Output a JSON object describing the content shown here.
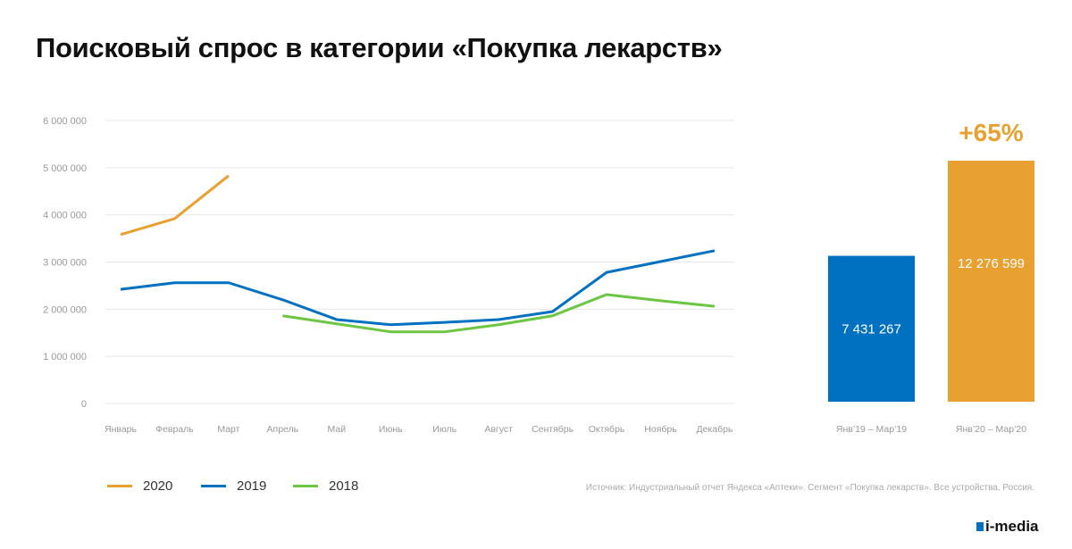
{
  "title": "Поисковый спрос в категории «Покупка лекарств»",
  "chart_data": [
    {
      "type": "line",
      "categories": [
        "Январь",
        "Февраль",
        "Март",
        "Апрель",
        "Май",
        "Июнь",
        "Июль",
        "Август",
        "Сентябрь",
        "Октябрь",
        "Ноябрь",
        "Декабрь"
      ],
      "ylim": [
        0,
        6000000
      ],
      "yticks": [
        0,
        1000000,
        2000000,
        3000000,
        4000000,
        5000000,
        6000000
      ],
      "ytick_labels": [
        "0",
        "1 000 000",
        "2 000 000",
        "3 000 000",
        "4 000 000",
        "5 000 000",
        "6 000 000"
      ],
      "grid": true,
      "legend_placement": "bottom-left",
      "series": [
        {
          "name": "2020",
          "color": "#e8a030",
          "values": [
            3580000,
            3920000,
            4830000,
            null,
            null,
            null,
            null,
            null,
            null,
            null,
            null,
            null
          ]
        },
        {
          "name": "2019",
          "color": "#0070c0",
          "values": [
            2420000,
            2560000,
            2560000,
            2200000,
            1780000,
            1670000,
            1720000,
            1780000,
            1950000,
            2780000,
            3010000,
            3240000
          ]
        },
        {
          "name": "2018",
          "color": "#6cc644",
          "values": [
            null,
            null,
            null,
            1860000,
            1690000,
            1520000,
            1520000,
            1670000,
            1860000,
            2310000,
            2180000,
            2060000
          ]
        }
      ]
    },
    {
      "type": "bar",
      "categories": [
        "Янв’19 – Мар’19",
        "Янв’20 – Мар’20"
      ],
      "values": [
        7431267,
        12276599
      ],
      "value_labels": [
        "7 431 267",
        "12 276 599"
      ],
      "colors": [
        "#0070c0",
        "#e8a030"
      ],
      "annotation": "+65%"
    }
  ],
  "source": "Источник: Индустриальный отчет Яндекса «Аптеки». Сегмент «Покупка лекарств». Все устройства. Россия.",
  "logo": "i-media"
}
